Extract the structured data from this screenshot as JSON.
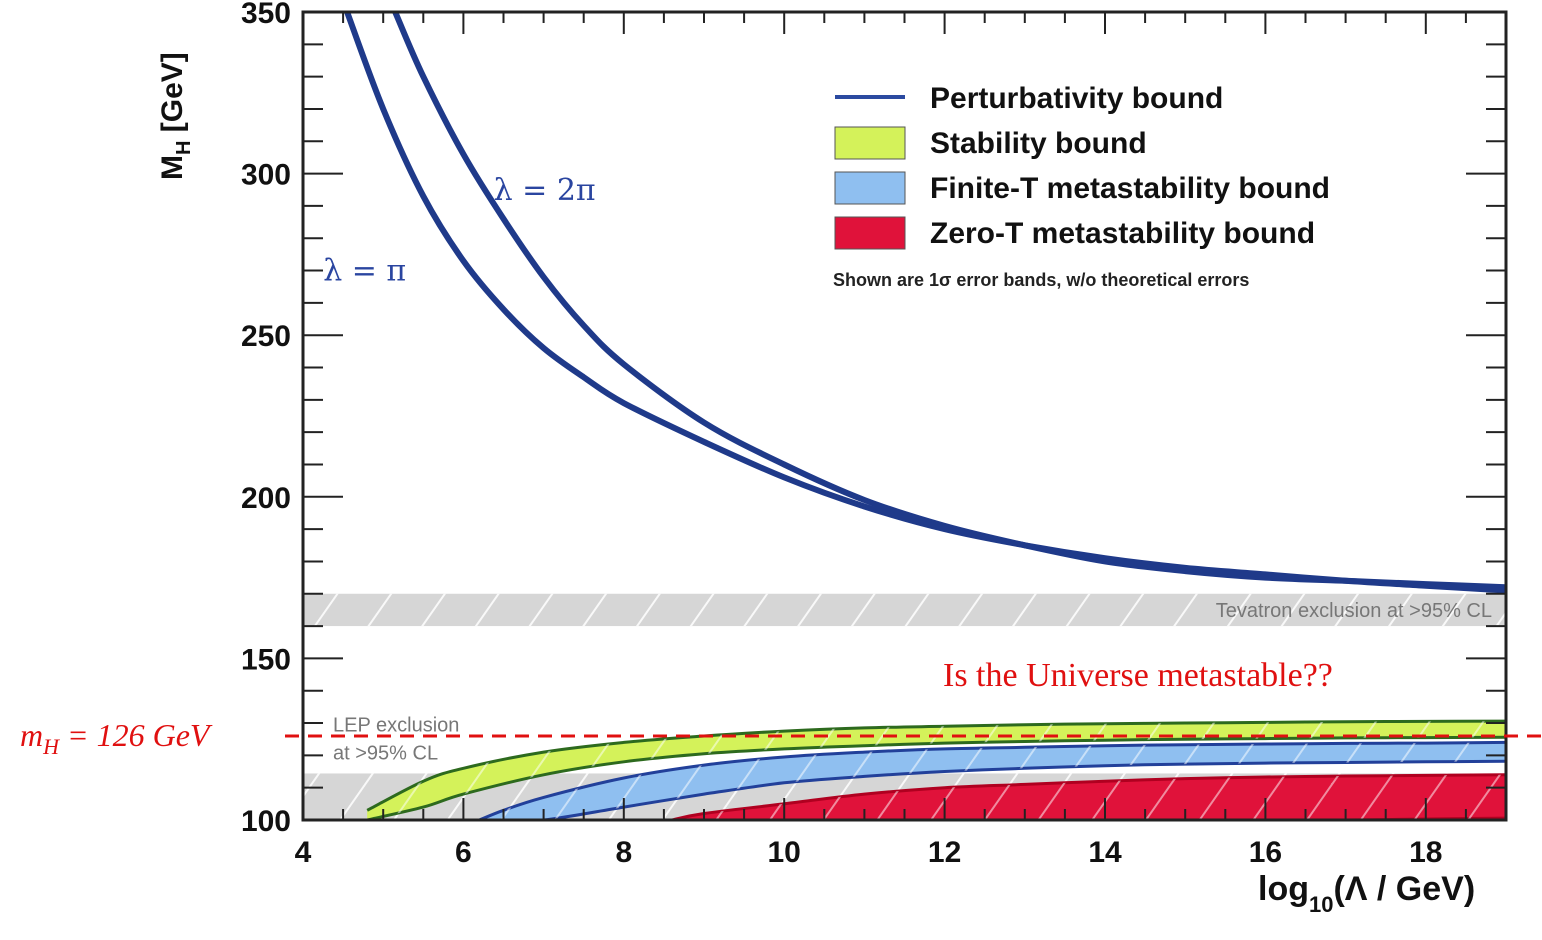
{
  "chart_data": {
    "type": "area",
    "xlabel_prefix": "log",
    "xlabel_sub": "10",
    "xlabel_suffix": "(Λ / GeV)",
    "ylabel_main": "M",
    "ylabel_sub": "H",
    "ylabel_unit": " [GeV]",
    "xlim": [
      4,
      19
    ],
    "ylim": [
      100,
      350
    ],
    "x_ticks": [
      4,
      6,
      8,
      10,
      12,
      14,
      16,
      18
    ],
    "y_ticks": [
      100,
      150,
      200,
      250,
      300,
      350
    ],
    "legend_position": "top-right",
    "legend": [
      {
        "label": "Perturbativity bound",
        "kind": "line",
        "color": "#2b4aa0"
      },
      {
        "label": "Stability bound",
        "kind": "patch",
        "color": "#d4f25a"
      },
      {
        "label": "Finite-T metastability bound",
        "kind": "patch",
        "color": "#8fbff0"
      },
      {
        "label": "Zero-T metastability bound",
        "kind": "patch",
        "color": "#e0123a"
      }
    ],
    "legend_note": "Shown are 1σ error bands, w/o theoretical errors",
    "series": [
      {
        "name": "λ = 2π",
        "kind": "perturbativity",
        "x": [
          5.15,
          5.5,
          6,
          6.5,
          7,
          7.5,
          8,
          9,
          10,
          11,
          12,
          13,
          14,
          15,
          16,
          17,
          18,
          19
        ],
        "y": [
          350,
          330,
          306,
          286,
          268,
          253,
          241,
          223,
          210,
          199,
          191,
          185,
          180,
          177,
          175,
          174,
          173,
          172
        ]
      },
      {
        "name": "λ = π",
        "kind": "perturbativity",
        "x": [
          4.55,
          5,
          5.5,
          6,
          6.5,
          7,
          7.5,
          8,
          9,
          10,
          11,
          12,
          13,
          14,
          15,
          16,
          17,
          18,
          19
        ],
        "y": [
          350,
          320,
          293,
          273,
          258,
          246,
          237,
          229,
          217,
          206,
          197,
          190,
          185,
          181,
          178,
          176,
          174,
          172.5,
          171
        ]
      },
      {
        "name": "Stability bound",
        "kind": "band",
        "x": [
          4.8,
          5.5,
          6,
          7,
          8,
          9,
          10,
          11,
          12,
          13,
          14,
          15,
          16,
          17,
          18,
          19
        ],
        "upper": [
          103,
          112,
          116,
          121,
          124,
          126,
          127.5,
          128.5,
          129,
          129.5,
          129.8,
          130,
          130.2,
          130.4,
          130.5,
          130.6
        ],
        "lower": [
          100,
          104,
          108,
          114,
          118,
          120.5,
          122,
          123,
          123.8,
          124.3,
          124.7,
          125,
          125.2,
          125.4,
          125.5,
          125.6
        ]
      },
      {
        "name": "Finite-T metastability bound",
        "kind": "band",
        "x": [
          6.2,
          6.5,
          7,
          8,
          9,
          10,
          11,
          12,
          13,
          14,
          15,
          16,
          17,
          18,
          19
        ],
        "upper": [
          100,
          103,
          107,
          113,
          117,
          119.5,
          121,
          122,
          122.5,
          123,
          123.3,
          123.5,
          123.7,
          123.8,
          124
        ],
        "lower": [
          100,
          100,
          100,
          104,
          108,
          111.5,
          113.5,
          115,
          116,
          116.8,
          117.3,
          117.6,
          117.8,
          118,
          118.2
        ]
      },
      {
        "name": "Zero-T metastability bound",
        "kind": "band",
        "x": [
          8.6,
          9,
          10,
          11,
          12,
          13,
          14,
          15,
          16,
          17,
          18,
          19
        ],
        "upper": [
          100,
          102,
          105,
          108,
          110,
          111,
          112,
          112.8,
          113.3,
          113.6,
          113.8,
          114
        ],
        "lower": [
          100,
          100,
          100,
          100,
          100,
          100,
          100,
          100,
          100,
          100,
          100.3,
          100.6
        ]
      }
    ],
    "exclusions": [
      {
        "label": "Tevatron exclusion at >95% CL",
        "ymin": 160,
        "ymax": 170
      },
      {
        "label_line1": "LEP exclusion",
        "label_line2": "at >95% CL",
        "ymin": 100,
        "ymax": 114.4
      }
    ],
    "reference_line": {
      "y": 126,
      "label_main": "m",
      "label_sub": "H",
      "label_rest": " = 126 GeV"
    },
    "annotation": "Is the Universe metastable??",
    "curve_labels": [
      "λ = 2π",
      "λ = π"
    ]
  }
}
